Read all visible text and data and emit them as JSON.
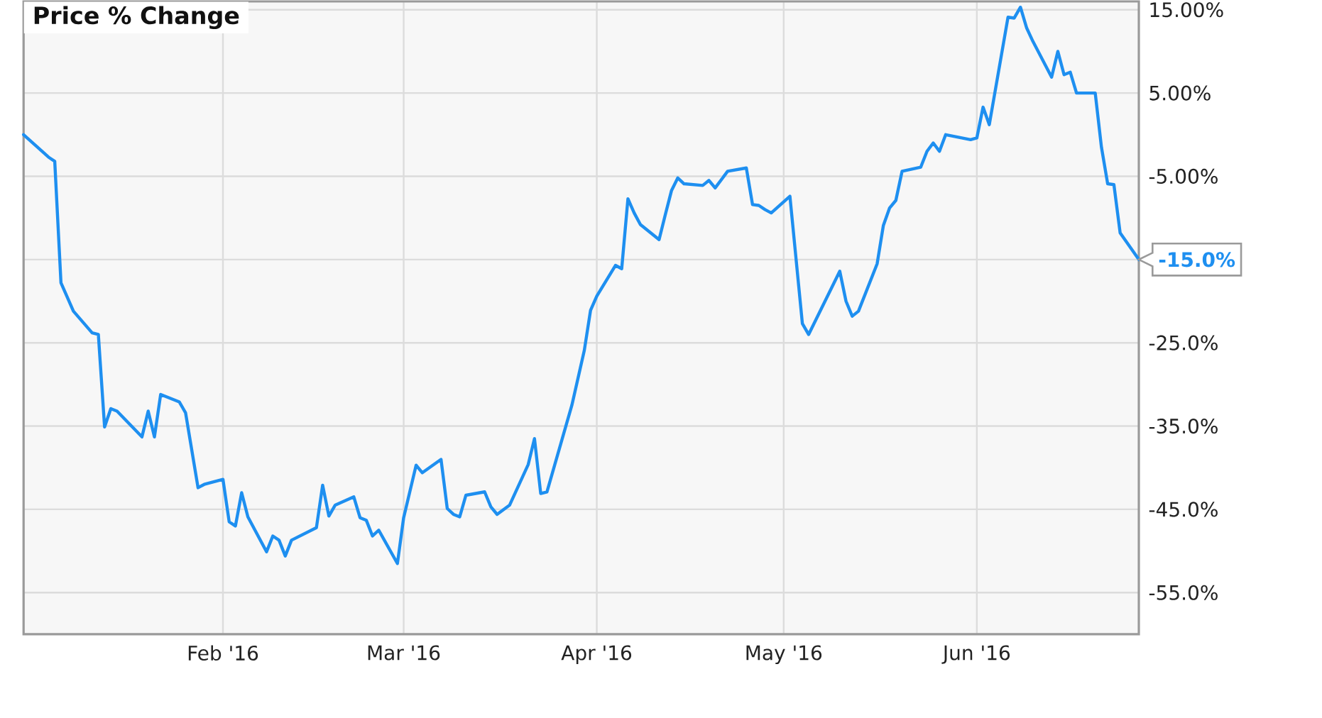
{
  "chart_data": {
    "type": "line",
    "title": "Price % Change",
    "x": [
      "2015-12-31",
      "2016-01-04",
      "2016-01-05",
      "2016-01-06",
      "2016-01-08",
      "2016-01-11",
      "2016-01-12",
      "2016-01-13",
      "2016-01-14",
      "2016-01-15",
      "2016-01-19",
      "2016-01-20",
      "2016-01-21",
      "2016-01-22",
      "2016-01-25",
      "2016-01-26",
      "2016-01-28",
      "2016-01-29",
      "2016-02-01",
      "2016-02-02",
      "2016-02-03",
      "2016-02-04",
      "2016-02-05",
      "2016-02-08",
      "2016-02-09",
      "2016-02-10",
      "2016-02-11",
      "2016-02-12",
      "2016-02-16",
      "2016-02-17",
      "2016-02-18",
      "2016-02-19",
      "2016-02-22",
      "2016-02-23",
      "2016-02-24",
      "2016-02-25",
      "2016-02-26",
      "2016-02-29",
      "2016-03-01",
      "2016-03-03",
      "2016-03-04",
      "2016-03-07",
      "2016-03-08",
      "2016-03-09",
      "2016-03-10",
      "2016-03-11",
      "2016-03-14",
      "2016-03-15",
      "2016-03-16",
      "2016-03-18",
      "2016-03-21",
      "2016-03-22",
      "2016-03-23",
      "2016-03-24",
      "2016-03-28",
      "2016-03-29",
      "2016-03-30",
      "2016-03-31",
      "2016-04-01",
      "2016-04-04",
      "2016-04-05",
      "2016-04-06",
      "2016-04-07",
      "2016-04-08",
      "2016-04-11",
      "2016-04-12",
      "2016-04-13",
      "2016-04-14",
      "2016-04-15",
      "2016-04-18",
      "2016-04-19",
      "2016-04-20",
      "2016-04-22",
      "2016-04-25",
      "2016-04-26",
      "2016-04-27",
      "2016-04-28",
      "2016-04-29",
      "2016-05-02",
      "2016-05-04",
      "2016-05-05",
      "2016-05-10",
      "2016-05-11",
      "2016-05-12",
      "2016-05-13",
      "2016-05-16",
      "2016-05-17",
      "2016-05-18",
      "2016-05-19",
      "2016-05-20",
      "2016-05-23",
      "2016-05-24",
      "2016-05-25",
      "2016-05-26",
      "2016-05-27",
      "2016-05-31",
      "2016-06-01",
      "2016-06-02",
      "2016-06-03",
      "2016-06-06",
      "2016-06-07",
      "2016-06-08",
      "2016-06-09",
      "2016-06-10",
      "2016-06-13",
      "2016-06-14",
      "2016-06-15",
      "2016-06-16",
      "2016-06-17",
      "2016-06-20",
      "2016-06-21",
      "2016-06-22",
      "2016-06-23",
      "2016-06-24",
      "2016-06-27"
    ],
    "series": [
      {
        "color": "#1e8ff0",
        "values": [
          0.0,
          -2.7,
          -3.2,
          -17.8,
          -21.2,
          -23.8,
          -24.0,
          -35.1,
          -32.9,
          -33.2,
          -36.3,
          -33.2,
          -36.3,
          -31.2,
          -32.1,
          -33.4,
          -42.4,
          -42.0,
          -41.4,
          -46.5,
          -47.0,
          -43.0,
          -45.9,
          -50.1,
          -48.2,
          -48.7,
          -50.6,
          -48.7,
          -47.2,
          -42.1,
          -45.8,
          -44.5,
          -43.5,
          -46.0,
          -46.3,
          -48.2,
          -47.5,
          -51.5,
          -46.0,
          -39.7,
          -40.6,
          -39.0,
          -44.9,
          -45.6,
          -45.9,
          -43.3,
          -42.9,
          -44.7,
          -45.6,
          -44.5,
          -39.6,
          -36.5,
          -43.1,
          -42.9,
          -32.5,
          -29.2,
          -25.9,
          -21.1,
          -19.4,
          -15.7,
          -16.1,
          -7.7,
          -9.4,
          -10.8,
          -12.6,
          -9.6,
          -6.7,
          -5.2,
          -5.9,
          -6.1,
          -5.5,
          -6.4,
          -4.4,
          -4.0,
          -8.4,
          -8.5,
          -9.0,
          -9.4,
          -7.4,
          -22.7,
          -24.0,
          -16.4,
          -20.0,
          -21.8,
          -21.2,
          -15.5,
          -10.9,
          -8.8,
          -7.9,
          -4.4,
          -3.9,
          -2.0,
          -1.0,
          -2.0,
          0.0,
          -0.6,
          -0.4,
          3.3,
          1.2,
          14.1,
          14.0,
          15.3,
          12.8,
          11.2,
          6.9,
          10.0,
          7.2,
          7.5,
          5.0,
          5.0,
          -1.5,
          -5.9,
          -6.0,
          -11.8,
          -15.0
        ]
      }
    ],
    "xlim": [
      "2015-12-31",
      "2016-06-27"
    ],
    "xticks": [
      {
        "value": "2016-02-01",
        "label": "Feb '16"
      },
      {
        "value": "2016-03-01",
        "label": "Mar '16"
      },
      {
        "value": "2016-04-01",
        "label": "Apr '16"
      },
      {
        "value": "2016-05-01",
        "label": "May '16"
      },
      {
        "value": "2016-06-01",
        "label": "Jun '16"
      }
    ],
    "ylim": [
      -60,
      16
    ],
    "yticks": [
      {
        "value": 15,
        "label": "15.00%"
      },
      {
        "value": 5,
        "label": "5.00%"
      },
      {
        "value": -5,
        "label": "-5.00%"
      },
      {
        "value": -15,
        "label": null
      },
      {
        "value": -25,
        "label": "-25.0%"
      },
      {
        "value": -35,
        "label": "-35.0%"
      },
      {
        "value": -45,
        "label": "-45.0%"
      },
      {
        "value": -55,
        "label": "-55.0%"
      }
    ],
    "grid": true,
    "annotations": [
      {
        "text": "-15.0%",
        "x": "2016-06-27",
        "y": -15.0
      }
    ]
  }
}
